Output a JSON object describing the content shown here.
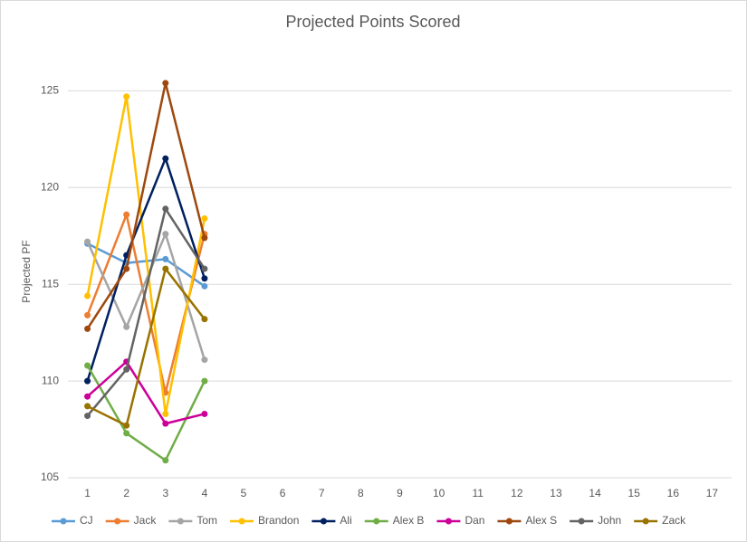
{
  "chart_data": {
    "type": "line",
    "title": "Projected Points Scored",
    "y_label": "Projected PF",
    "categories": [
      "1",
      "2",
      "3",
      "4",
      "5",
      "6",
      "7",
      "8",
      "9",
      "10",
      "11",
      "12",
      "13",
      "14",
      "15",
      "16",
      "17"
    ],
    "ylim": [
      105,
      126
    ],
    "yticks": [
      105,
      110,
      115,
      120,
      125
    ],
    "grid": true,
    "legend": "bottom",
    "series": [
      {
        "name": "CJ",
        "color": "#5b9bd5",
        "values": [
          117.1,
          116.1,
          116.3,
          114.9,
          null,
          null,
          null,
          null,
          null,
          null,
          null,
          null,
          null,
          null,
          null,
          null,
          null
        ]
      },
      {
        "name": "Jack",
        "color": "#ed7d31",
        "values": [
          113.4,
          118.6,
          109.4,
          117.6,
          null,
          null,
          null,
          null,
          null,
          null,
          null,
          null,
          null,
          null,
          null,
          null,
          null
        ]
      },
      {
        "name": "Tom",
        "color": "#a5a5a5",
        "values": [
          117.2,
          112.8,
          117.6,
          111.1,
          null,
          null,
          null,
          null,
          null,
          null,
          null,
          null,
          null,
          null,
          null,
          null,
          null
        ]
      },
      {
        "name": "Brandon",
        "color": "#ffc000",
        "values": [
          114.4,
          124.7,
          108.3,
          118.4,
          null,
          null,
          null,
          null,
          null,
          null,
          null,
          null,
          null,
          null,
          null,
          null,
          null
        ]
      },
      {
        "name": "Ali",
        "color": "#002060",
        "values": [
          110.0,
          116.5,
          121.5,
          115.3,
          null,
          null,
          null,
          null,
          null,
          null,
          null,
          null,
          null,
          null,
          null,
          null,
          null
        ]
      },
      {
        "name": "Alex B",
        "color": "#70ad47",
        "values": [
          110.8,
          107.3,
          105.9,
          110.0,
          null,
          null,
          null,
          null,
          null,
          null,
          null,
          null,
          null,
          null,
          null,
          null,
          null
        ]
      },
      {
        "name": "Dan",
        "color": "#cc0099",
        "values": [
          109.2,
          111.0,
          107.8,
          108.3,
          null,
          null,
          null,
          null,
          null,
          null,
          null,
          null,
          null,
          null,
          null,
          null,
          null
        ]
      },
      {
        "name": "Alex S",
        "color": "#9e480e",
        "values": [
          112.7,
          115.8,
          125.4,
          117.4,
          null,
          null,
          null,
          null,
          null,
          null,
          null,
          null,
          null,
          null,
          null,
          null,
          null
        ]
      },
      {
        "name": "John",
        "color": "#636363",
        "values": [
          108.2,
          110.6,
          118.9,
          115.8,
          null,
          null,
          null,
          null,
          null,
          null,
          null,
          null,
          null,
          null,
          null,
          null,
          null
        ]
      },
      {
        "name": "Zack",
        "color": "#997300",
        "values": [
          108.7,
          107.7,
          115.8,
          113.2,
          null,
          null,
          null,
          null,
          null,
          null,
          null,
          null,
          null,
          null,
          null,
          null,
          null
        ]
      }
    ]
  }
}
